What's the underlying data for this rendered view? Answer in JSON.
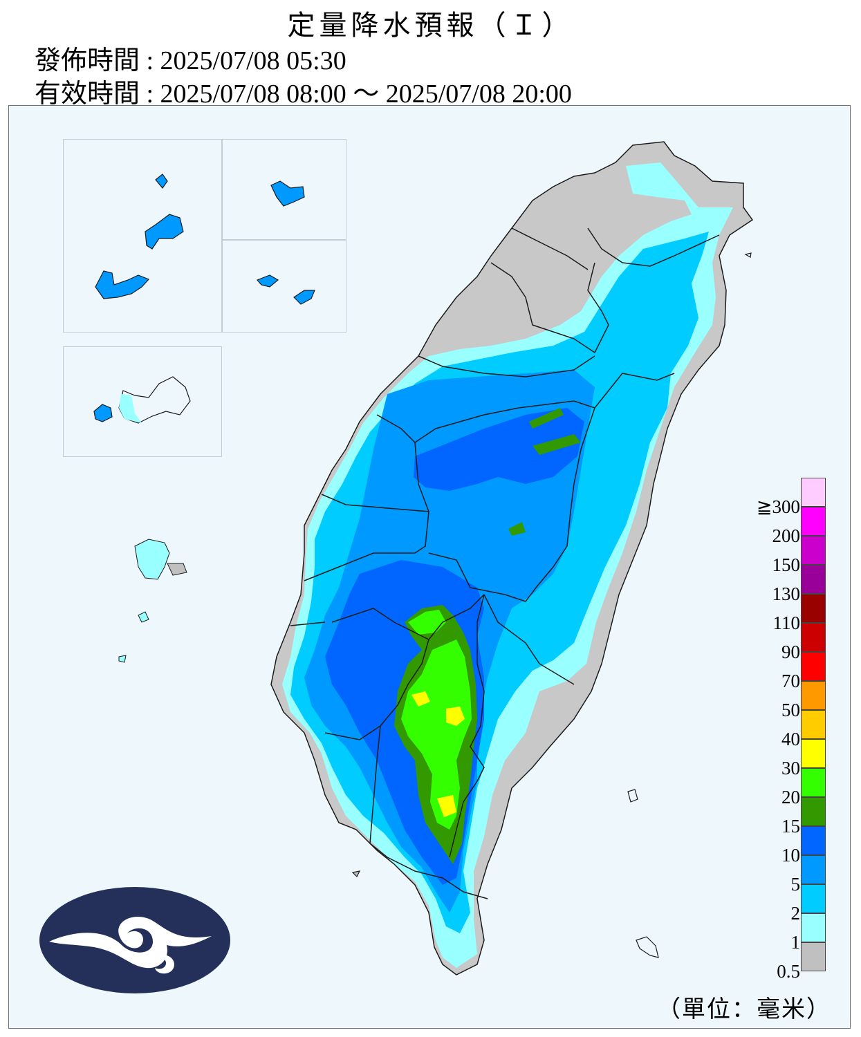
{
  "header": {
    "title": "定量降水預報（Ｉ）",
    "issue_time": "發佈時間 : 2025/07/08 05:30",
    "valid_time": "有效時間 : 2025/07/08 08:00 ～ 2025/07/08 20:00"
  },
  "legend": {
    "unit": "（單位：毫米）",
    "colors": [
      "#c0c0c0",
      "#99ffff",
      "#00ccff",
      "#0099ff",
      "#0066ff",
      "#339900",
      "#33ff00",
      "#ffff00",
      "#ffcc00",
      "#ff9900",
      "#ff0000",
      "#cc0000",
      "#990000",
      "#990099",
      "#cc00cc",
      "#ff00ff",
      "#ffccff"
    ],
    "labels": [
      "0.5",
      "1",
      "2",
      "5",
      "10",
      "15",
      "20",
      "30",
      "40",
      "50",
      "70",
      "90",
      "110",
      "130",
      "150",
      "200",
      "≧300"
    ]
  },
  "map": {
    "colors": {
      "background": "#eef7fc",
      "trace": "#c0c0c0",
      "light_cyan": "#99ffff",
      "cyan": "#00ccff",
      "light_blue": "#0099ff",
      "blue": "#0066ff",
      "dark_green": "#339900",
      "green": "#33ff00",
      "yellow": "#ffff00"
    },
    "logo_color": "#25305a"
  }
}
